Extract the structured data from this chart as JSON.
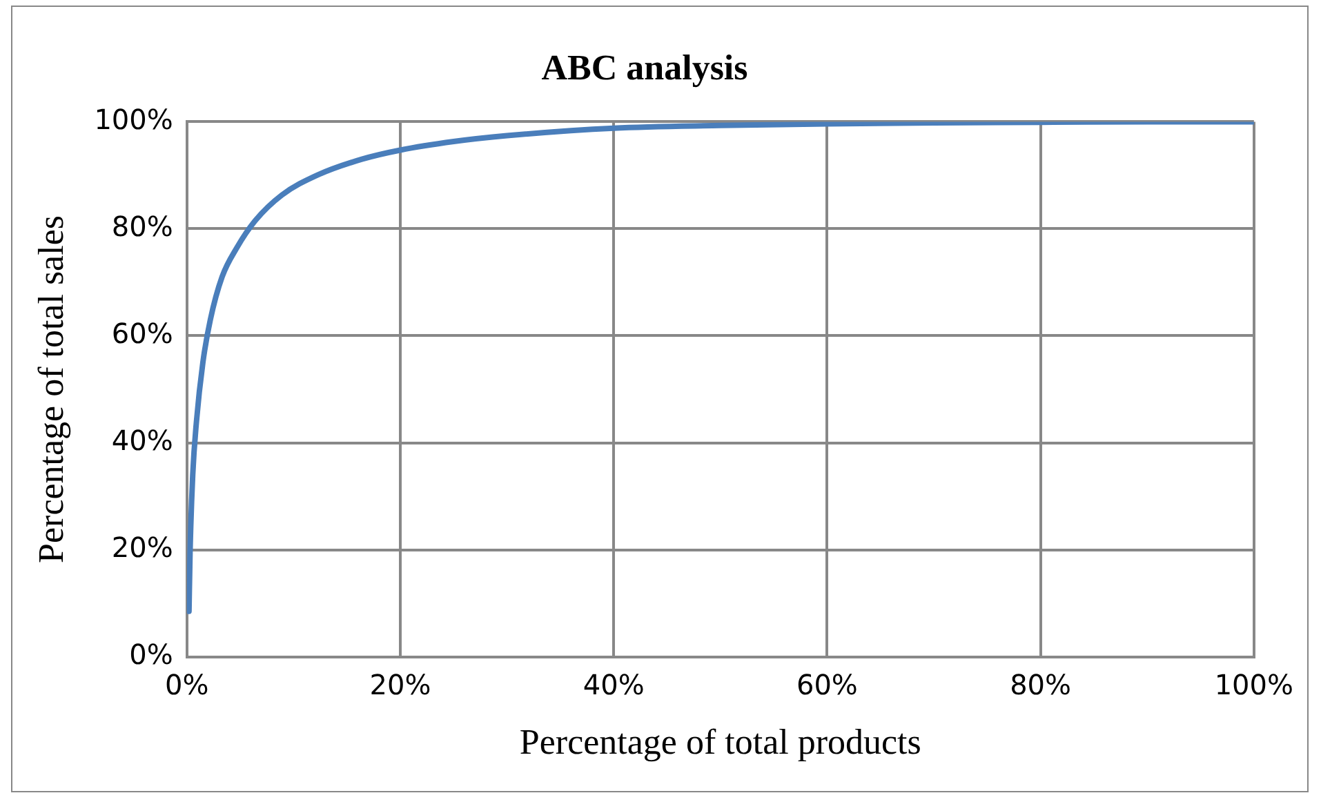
{
  "chart_data": {
    "type": "line",
    "title": "ABC analysis",
    "xlabel": "Percentage of total products",
    "ylabel": "Percentage of total sales",
    "x": [
      0.2,
      0.3,
      0.55,
      0.9,
      1.5,
      2.2,
      3.3,
      4.7,
      6.4,
      8.9,
      12.2,
      16.4,
      20,
      25,
      30,
      40,
      50,
      60,
      70,
      80,
      90,
      100
    ],
    "series": [
      {
        "color": "#4a7ebb",
        "values": [
          8.5,
          19.6,
          34,
          44,
          55,
          63,
          71,
          76.5,
          81.5,
          86.3,
          90,
          93,
          94.7,
          96.3,
          97.4,
          98.8,
          99.3,
          99.6,
          99.8,
          99.9,
          100,
          100
        ]
      }
    ],
    "xlim": [
      0,
      100
    ],
    "xticks": [
      {
        "value": 0,
        "label": "0%"
      },
      {
        "value": 20,
        "label": "20%"
      },
      {
        "value": 40,
        "label": "40%"
      },
      {
        "value": 60,
        "label": "60%"
      },
      {
        "value": 80,
        "label": "80%"
      },
      {
        "value": 100,
        "label": "100%"
      }
    ],
    "ylim": [
      0,
      100
    ],
    "yticks": [
      {
        "value": 0,
        "label": "0%"
      },
      {
        "value": 20,
        "label": "20%"
      },
      {
        "value": 40,
        "label": "40%"
      },
      {
        "value": 60,
        "label": "60%"
      },
      {
        "value": 80,
        "label": "80%"
      },
      {
        "value": 100,
        "label": "100%"
      }
    ],
    "grid": true,
    "legend": false,
    "marker": "none",
    "line_style": "solid"
  }
}
